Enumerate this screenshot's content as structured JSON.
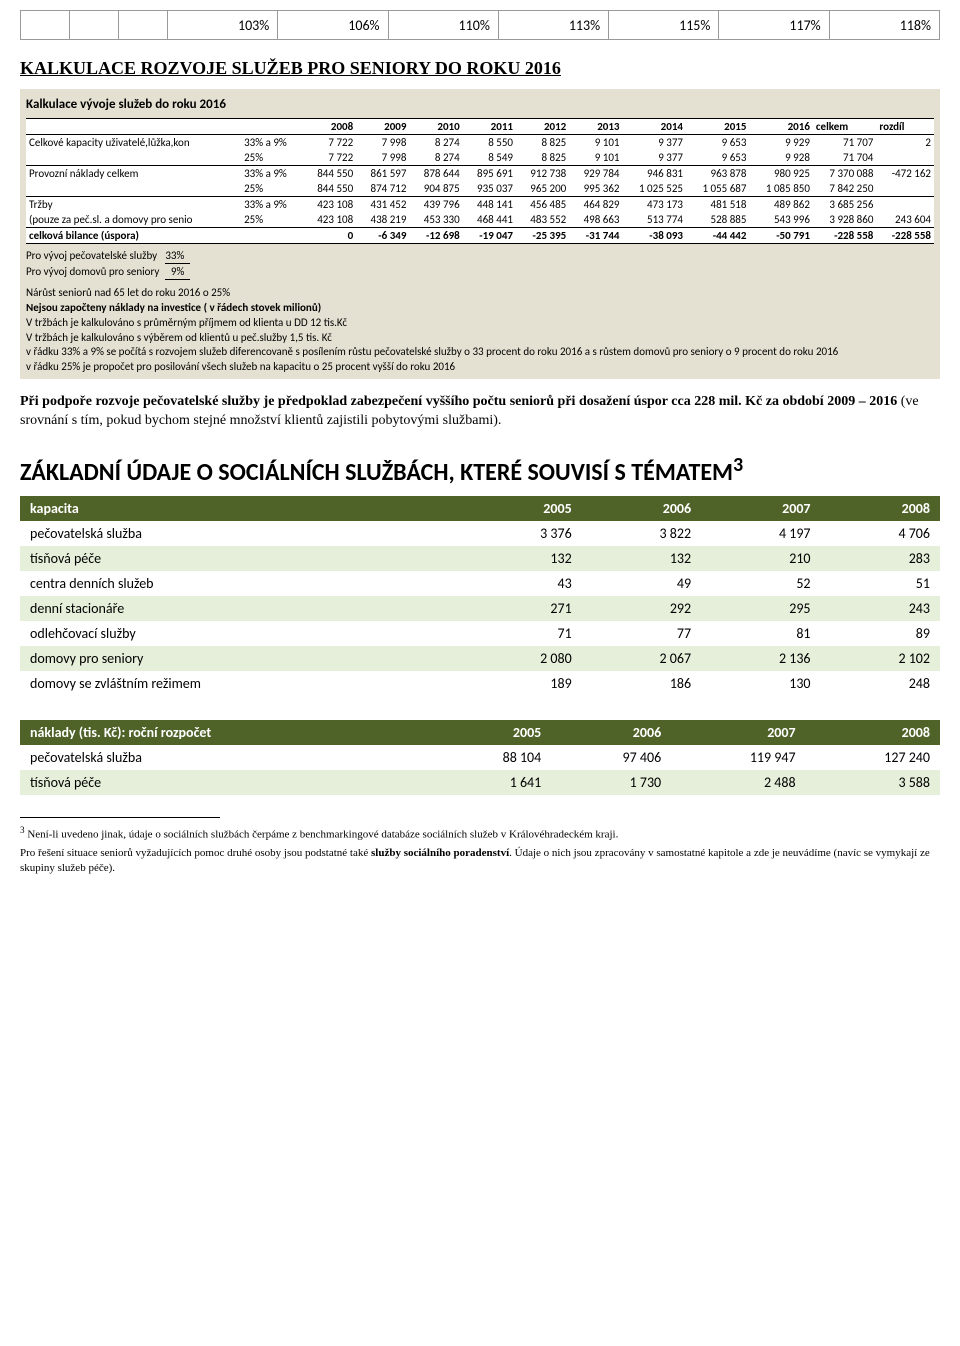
{
  "top_row": [
    "103%",
    "106%",
    "110%",
    "113%",
    "115%",
    "117%",
    "118%"
  ],
  "top_empty_cols": 3,
  "heading1": "KALKULACE ROZVOJE SLUŽEB PRO SENIORY DO ROKU 2016",
  "kalk_title": "Kalkulace vývoje služeb do roku 2016",
  "kalk_years": [
    "2008",
    "2009",
    "2010",
    "2011",
    "2012",
    "2013",
    "2014",
    "2015",
    "2016",
    "celkem",
    "rozdíl"
  ],
  "kalk_rows": [
    {
      "label": "Celkové kapacity uživatelé,lůžka,kon",
      "pct": "33% a 9%",
      "vals": [
        "7 722",
        "7 998",
        "8 274",
        "8 550",
        "8 825",
        "9 101",
        "9 377",
        "9 653",
        "9 929",
        "71 707",
        "2"
      ]
    },
    {
      "label": "",
      "pct": "25%",
      "vals": [
        "7 722",
        "7 998",
        "8 274",
        "8 549",
        "8 825",
        "9 101",
        "9 377",
        "9 653",
        "9 928",
        "71 704",
        ""
      ]
    },
    {
      "label": "Provozní náklady celkem",
      "pct": "33% a 9%",
      "vals": [
        "844 550",
        "861 597",
        "878 644",
        "895 691",
        "912 738",
        "929 784",
        "946 831",
        "963 878",
        "980 925",
        "7 370 088",
        "-472 162"
      ],
      "rule": true
    },
    {
      "label": "",
      "pct": "25%",
      "vals": [
        "844 550",
        "874 712",
        "904 875",
        "935 037",
        "965 200",
        "995 362",
        "1 025 525",
        "1 055 687",
        "1 085 850",
        "7 842 250",
        ""
      ]
    },
    {
      "label": "Tržby",
      "pct": "33% a 9%",
      "vals": [
        "423 108",
        "431 452",
        "439 796",
        "448 141",
        "456 485",
        "464 829",
        "473 173",
        "481 518",
        "489 862",
        "3 685 256",
        ""
      ],
      "rule": true
    },
    {
      "label": "(pouze za peč.sl. a domovy pro senio",
      "pct": "25%",
      "vals": [
        "423 108",
        "438 219",
        "453 330",
        "468 441",
        "483 552",
        "498 663",
        "513 774",
        "528 885",
        "543 996",
        "3 928 860",
        "243 604"
      ]
    },
    {
      "label": "celková bilance (úspora)",
      "pct": "",
      "vals": [
        "0",
        "-6 349",
        "-12 698",
        "-19 047",
        "-25 395",
        "-31 744",
        "-38 093",
        "-44 442",
        "-50 791",
        "-228 558",
        "-228 558"
      ],
      "rule": true,
      "bold": true
    }
  ],
  "mini_rows": [
    {
      "label": "Pro vývoj pečovatelské služby",
      "val": "33%"
    },
    {
      "label": "Pro vývoj domovů pro seniory",
      "val": "9%"
    }
  ],
  "kalk_notes": [
    {
      "text": "Nárůst seniorů nad 65 let do roku 2016 o 25%",
      "bold": false
    },
    {
      "text": "Nejsou započteny náklady na investice ( v řádech stovek milionů)",
      "bold": true
    },
    {
      "text": "V tržbách je kalkulováno s průměrným příjmem od klienta u DD 12 tis.Kč",
      "bold": false
    },
    {
      "text": "V tržbách je kalkulováno s výběrem od klientů u peč.služby 1,5 tis. Kč",
      "bold": false
    },
    {
      "text": "v řádku 33% a 9% se počítá s rozvojem služeb diferencovaně s posílením růstu pečovatelské služby o 33 procent do roku 2016 a s růstem domovů pro seniory  o 9 procent do roku 2016",
      "bold": false
    },
    {
      "text": "v řádku 25% je propočet pro posilování všech služeb na kapacitu o 25 procent vyšší do roku 2016",
      "bold": false
    }
  ],
  "paragraph": {
    "pre": "Při podpoře rozvoje pečovatelské služby je předpoklad zabezpečení vyššího počtu seniorů při dosažení úspor cca 228 mil. Kč za období 2009 – 2016 ",
    "post": "(ve srovnání s tím, pokud bychom stejné množství klientů zajistili pobytovými službami)."
  },
  "heading2_pre": "ZÁKLADNÍ ÚDAJE O SOCIÁLNÍCH SLUŽBÁCH, KTERÉ SOUVISÍ S TÉMATEM",
  "heading2_sup": "3",
  "kapacita_header": [
    "kapacita",
    "2005",
    "2006",
    "2007",
    "2008"
  ],
  "kapacita_rows": [
    [
      "pečovatelská služba",
      "3 376",
      "3 822",
      "4 197",
      "4 706"
    ],
    [
      "tísňová péče",
      "132",
      "132",
      "210",
      "283"
    ],
    [
      "centra denních služeb",
      "43",
      "49",
      "52",
      "51"
    ],
    [
      "denní stacionáře",
      "271",
      "292",
      "295",
      "243"
    ],
    [
      "odlehčovací služby",
      "71",
      "77",
      "81",
      "89"
    ],
    [
      "domovy pro seniory",
      "2 080",
      "2 067",
      "2 136",
      "2 102"
    ],
    [
      "domovy se zvláštním režimem",
      "189",
      "186",
      "130",
      "248"
    ]
  ],
  "naklady_header": [
    "náklady (tis. Kč): roční rozpočet",
    "2005",
    "2006",
    "2007",
    "2008"
  ],
  "naklady_rows": [
    [
      "pečovatelská služba",
      "88 104",
      "97 406",
      "119 947",
      "127 240"
    ],
    [
      "tísňová péče",
      "1 641",
      "1 730",
      "2 488",
      "3 588"
    ]
  ],
  "fn1_sup": "3",
  "fn1": " Není-li uvedeno jinak, údaje o sociálních službách čerpáme z benchmarkingové databáze sociálních služeb v Královéhradeckém kraji.",
  "fn2_pre": "Pro řešení situace seniorů vyžadujících pomoc druhé osoby jsou podstatné také ",
  "fn2_bold": "služby sociálního poradenství",
  "fn2_post": ". Údaje o nich jsou zpracovány v samostatné kapitole a zde je neuvádíme (navíc se vymykají ze skupiny služeb péče).",
  "colors": {
    "kalk_bg": "#e4e0d2",
    "green_header": "#4f6228",
    "green_zebra": "#e5efd9"
  }
}
